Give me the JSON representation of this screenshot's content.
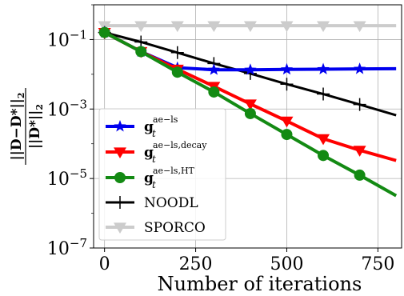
{
  "chart_data": {
    "type": "line",
    "xlabel": "Number of iterations",
    "ylabel": {
      "numerator": "||D−D*||",
      "denominator": "||D*||",
      "subscript": "2"
    },
    "yscale": "log",
    "xlim": [
      -30,
      815
    ],
    "ylim": [
      1e-07,
      1
    ],
    "grid": true,
    "legend_position": "lower-left",
    "x_ticks": [
      0,
      250,
      500,
      750
    ],
    "x_tick_labels": [
      "0",
      "250",
      "500",
      "750"
    ],
    "y_ticks": [
      0.1,
      0.001,
      1e-05,
      1e-07
    ],
    "y_tick_labels": [
      {
        "base": "10",
        "exp": "−1"
      },
      {
        "base": "10",
        "exp": "−3"
      },
      {
        "base": "10",
        "exp": "−5"
      },
      {
        "base": "10",
        "exp": "−7"
      }
    ],
    "series": [
      {
        "name": "g_t^{ae−ls}",
        "legend": {
          "main": "g",
          "sup": "ae−ls",
          "sub": "t"
        },
        "color": "#0000ee",
        "marker": "star",
        "x": [
          0,
          100,
          200,
          300,
          400,
          500,
          600,
          700,
          800
        ],
        "y": [
          0.16,
          0.045,
          0.0155,
          0.0135,
          0.0135,
          0.0138,
          0.014,
          0.0143,
          0.0145
        ],
        "marker_x": [
          0,
          100,
          200,
          300,
          400,
          500,
          600,
          700
        ]
      },
      {
        "name": "g_t^{ae−ls,decay}",
        "legend": {
          "main": "g",
          "sup": "ae−ls,decay",
          "sub": "t"
        },
        "color": "#ff0000",
        "marker": "triangle-down",
        "x": [
          0,
          100,
          200,
          300,
          400,
          500,
          600,
          700,
          800
        ],
        "y": [
          0.16,
          0.045,
          0.014,
          0.0045,
          0.0014,
          0.00045,
          0.00014,
          6.5e-05,
          3.3e-05
        ],
        "marker_x": [
          0,
          100,
          200,
          300,
          400,
          500,
          600,
          700
        ]
      },
      {
        "name": "g_t^{ae−ls,HT}",
        "legend": {
          "main": "g",
          "sup": "ae−ls,HT",
          "sub": "t"
        },
        "color": "#138a13",
        "marker": "circle",
        "x": [
          0,
          100,
          200,
          300,
          400,
          500,
          600,
          700,
          800
        ],
        "y": [
          0.16,
          0.045,
          0.0115,
          0.0031,
          0.00074,
          0.000185,
          4.6e-05,
          1.25e-05,
          3.2e-06
        ],
        "marker_x": [
          0,
          100,
          200,
          300,
          400,
          500,
          600,
          700
        ]
      },
      {
        "name": "NOODL",
        "legend": {
          "main": "NOODL"
        },
        "color": "#000000",
        "marker": "plus",
        "x": [
          0,
          100,
          200,
          300,
          400,
          500,
          600,
          700,
          800
        ],
        "y": [
          0.16,
          0.085,
          0.042,
          0.0205,
          0.0105,
          0.0052,
          0.0027,
          0.00135,
          0.00066
        ],
        "marker_x": [
          0,
          100,
          200,
          300,
          400,
          500,
          600,
          700
        ]
      },
      {
        "name": "SPORCO",
        "legend": {
          "main": "SPORCO"
        },
        "color": "#cccccc",
        "marker": "triangle-down",
        "x": [
          0,
          100,
          200,
          300,
          400,
          500,
          600,
          700,
          800
        ],
        "y": [
          0.25,
          0.25,
          0.25,
          0.25,
          0.25,
          0.25,
          0.25,
          0.25,
          0.25
        ],
        "marker_x": [
          0,
          100,
          200,
          300,
          400,
          500,
          600,
          700
        ]
      }
    ]
  }
}
